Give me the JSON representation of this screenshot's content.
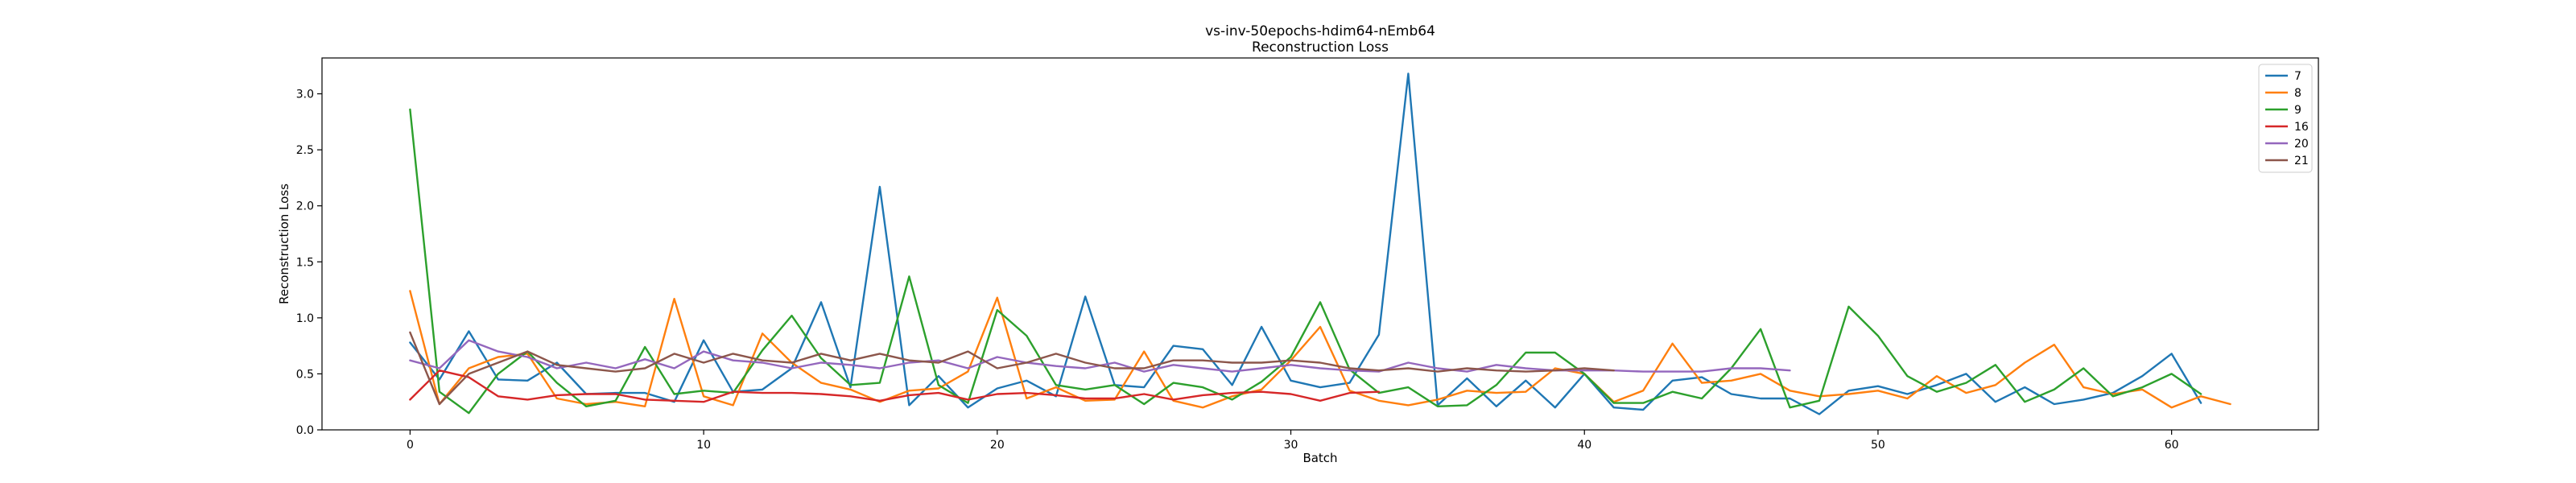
{
  "chart_data": {
    "type": "line",
    "title": "vs-inv-50epochs-hdim64-nEmb64",
    "subtitle": "Reconstruction Loss",
    "xlabel": "Batch",
    "ylabel": "Reconstruction Loss",
    "xlim": [
      -3,
      65
    ],
    "ylim": [
      0,
      3.32
    ],
    "xticks": [
      0,
      10,
      20,
      30,
      40,
      50,
      60
    ],
    "yticks": [
      0.0,
      0.5,
      1.0,
      1.5,
      2.0,
      2.5,
      3.0
    ],
    "xtick_labels": [
      "0",
      "10",
      "20",
      "30",
      "40",
      "50",
      "60"
    ],
    "ytick_labels": [
      "0.0",
      "0.5",
      "1.0",
      "1.5",
      "2.0",
      "2.5",
      "3.0"
    ],
    "grid": false,
    "legend_position": "top-right",
    "series": [
      {
        "name": "7",
        "color": "#1f77b4",
        "values": [
          0.78,
          0.45,
          0.88,
          0.45,
          0.44,
          0.6,
          0.32,
          0.33,
          0.33,
          0.25,
          0.8,
          0.34,
          0.36,
          0.55,
          1.14,
          0.38,
          2.17,
          0.22,
          0.48,
          0.2,
          0.37,
          0.44,
          0.3,
          1.19,
          0.4,
          0.38,
          0.75,
          0.72,
          0.4,
          0.92,
          0.44,
          0.38,
          0.42,
          0.85,
          3.18,
          0.22,
          0.46,
          0.21,
          0.44,
          0.2,
          0.5,
          0.2,
          0.18,
          0.44,
          0.47,
          0.32,
          0.28,
          0.28,
          0.14,
          0.35,
          0.39,
          0.32,
          0.4,
          0.5,
          0.25,
          0.38,
          0.23,
          0.27,
          0.33,
          0.48,
          0.68,
          0.24
        ]
      },
      {
        "name": "8",
        "color": "#ff7f0e",
        "values": [
          1.24,
          0.23,
          0.55,
          0.65,
          0.68,
          0.28,
          0.23,
          0.25,
          0.21,
          1.17,
          0.3,
          0.22,
          0.86,
          0.6,
          0.42,
          0.36,
          0.25,
          0.35,
          0.37,
          0.52,
          1.18,
          0.28,
          0.38,
          0.26,
          0.27,
          0.7,
          0.26,
          0.2,
          0.3,
          0.36,
          0.62,
          0.92,
          0.35,
          0.26,
          0.22,
          0.27,
          0.35,
          0.33,
          0.34,
          0.55,
          0.5,
          0.25,
          0.35,
          0.77,
          0.42,
          0.44,
          0.5,
          0.35,
          0.3,
          0.32,
          0.35,
          0.28,
          0.48,
          0.33,
          0.4,
          0.6,
          0.76,
          0.38,
          0.32,
          0.36,
          0.2,
          0.3,
          0.23
        ]
      },
      {
        "name": "9",
        "color": "#2ca02c",
        "values": [
          2.86,
          0.34,
          0.15,
          0.5,
          0.7,
          0.42,
          0.21,
          0.26,
          0.74,
          0.32,
          0.35,
          0.33,
          0.71,
          1.02,
          0.64,
          0.4,
          0.42,
          1.37,
          0.4,
          0.24,
          1.07,
          0.84,
          0.4,
          0.36,
          0.4,
          0.23,
          0.42,
          0.38,
          0.27,
          0.43,
          0.65,
          1.14,
          0.54,
          0.33,
          0.38,
          0.21,
          0.22,
          0.4,
          0.69,
          0.69,
          0.5,
          0.24,
          0.24,
          0.34,
          0.28,
          0.55,
          0.9,
          0.2,
          0.26,
          1.1,
          0.84,
          0.48,
          0.34,
          0.42,
          0.58,
          0.25,
          0.36,
          0.55,
          0.3,
          0.38,
          0.5,
          0.32
        ]
      },
      {
        "name": "16",
        "color": "#d62728",
        "values": [
          0.27,
          0.53,
          0.47,
          0.3,
          0.27,
          0.31,
          0.32,
          0.32,
          0.27,
          0.26,
          0.25,
          0.34,
          0.33,
          0.33,
          0.32,
          0.3,
          0.26,
          0.31,
          0.33,
          0.27,
          0.32,
          0.33,
          0.31,
          0.28,
          0.28,
          0.32,
          0.27,
          0.31,
          0.33,
          0.34,
          0.32,
          0.26,
          0.33,
          0.34
        ]
      },
      {
        "name": "20",
        "color": "#9467bd",
        "values": [
          0.62,
          0.55,
          0.8,
          0.7,
          0.65,
          0.55,
          0.6,
          0.55,
          0.63,
          0.55,
          0.7,
          0.62,
          0.6,
          0.55,
          0.6,
          0.58,
          0.55,
          0.6,
          0.62,
          0.55,
          0.65,
          0.6,
          0.57,
          0.55,
          0.6,
          0.52,
          0.58,
          0.55,
          0.52,
          0.55,
          0.58,
          0.55,
          0.53,
          0.52,
          0.6,
          0.55,
          0.52,
          0.58,
          0.55,
          0.53,
          0.53,
          0.53,
          0.52,
          0.52,
          0.52,
          0.55,
          0.55,
          0.53
        ]
      },
      {
        "name": "21",
        "color": "#8c564b",
        "values": [
          0.87,
          0.23,
          0.5,
          0.6,
          0.7,
          0.58,
          0.55,
          0.52,
          0.55,
          0.68,
          0.6,
          0.68,
          0.62,
          0.6,
          0.68,
          0.62,
          0.68,
          0.62,
          0.6,
          0.7,
          0.55,
          0.6,
          0.68,
          0.6,
          0.55,
          0.55,
          0.62,
          0.62,
          0.6,
          0.6,
          0.62,
          0.6,
          0.55,
          0.53,
          0.55,
          0.52,
          0.55,
          0.53,
          0.52,
          0.53,
          0.55,
          0.53
        ]
      }
    ]
  }
}
